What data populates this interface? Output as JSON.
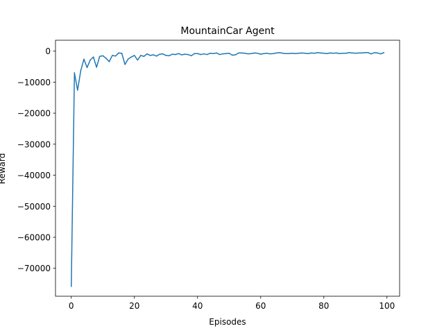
{
  "chart_data": {
    "type": "line",
    "title": "MountainCar Agent",
    "xlabel": "Episodes",
    "ylabel": "Reward",
    "xlim": [
      -5,
      104
    ],
    "ylim": [
      -79000,
      3500
    ],
    "xticks": [
      0,
      20,
      40,
      60,
      80,
      100
    ],
    "xtick_labels": [
      "0",
      "20",
      "40",
      "60",
      "80",
      "100"
    ],
    "yticks": [
      0,
      -10000,
      -20000,
      -30000,
      -40000,
      -50000,
      -60000,
      -70000
    ],
    "ytick_labels": [
      "0",
      "−10000",
      "−20000",
      "−30000",
      "−40000",
      "−50000",
      "−60000",
      "−70000"
    ],
    "grid": false,
    "series_color": "#1f77b4",
    "series": [
      {
        "x": [
          0,
          1,
          2,
          3,
          4,
          5,
          6,
          7,
          8,
          9,
          10,
          11,
          12,
          13,
          14,
          15,
          16,
          17,
          18,
          19,
          20,
          21,
          22,
          23,
          24,
          25,
          26,
          27,
          28,
          29,
          30,
          31,
          32,
          33,
          34,
          35,
          36,
          37,
          38,
          39,
          40,
          41,
          42,
          43,
          44,
          45,
          46,
          47,
          48,
          49,
          50,
          51,
          52,
          53,
          54,
          55,
          56,
          57,
          58,
          59,
          60,
          61,
          62,
          63,
          64,
          65,
          66,
          67,
          68,
          69,
          70,
          71,
          72,
          73,
          74,
          75,
          76,
          77,
          78,
          79,
          80,
          81,
          82,
          83,
          84,
          85,
          86,
          87,
          88,
          89,
          90,
          91,
          92,
          93,
          94,
          95,
          96,
          97,
          98,
          99
        ],
        "values": [
          -75800,
          -7000,
          -12600,
          -6300,
          -2600,
          -5300,
          -2900,
          -1900,
          -5200,
          -1700,
          -1500,
          -2300,
          -3400,
          -1400,
          -1600,
          -600,
          -700,
          -4300,
          -2600,
          -1900,
          -1400,
          -2900,
          -1400,
          -1700,
          -900,
          -1400,
          -1200,
          -1600,
          -1000,
          -900,
          -1400,
          -1500,
          -1000,
          -1100,
          -800,
          -1200,
          -1000,
          -1100,
          -1500,
          -800,
          -800,
          -1100,
          -900,
          -1100,
          -700,
          -800,
          -600,
          -1100,
          -900,
          -800,
          -700,
          -1300,
          -1200,
          -600,
          -600,
          -700,
          -900,
          -800,
          -600,
          -700,
          -1000,
          -800,
          -700,
          -900,
          -800,
          -600,
          -500,
          -700,
          -800,
          -800,
          -700,
          -800,
          -700,
          -600,
          -700,
          -800,
          -600,
          -700,
          -500,
          -600,
          -700,
          -800,
          -600,
          -700,
          -600,
          -800,
          -700,
          -700,
          -500,
          -600,
          -700,
          -600,
          -600,
          -500,
          -500,
          -900,
          -500,
          -600,
          -900,
          -500
        ]
      }
    ]
  }
}
